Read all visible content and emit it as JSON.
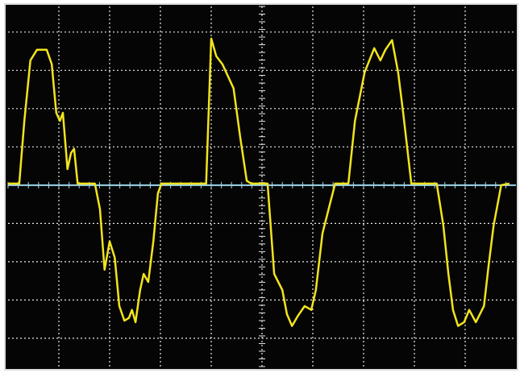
{
  "chart_data": {
    "type": "line",
    "x": [
      0,
      0.22,
      0.32,
      0.44,
      0.57,
      0.76,
      0.86,
      0.95,
      1.02,
      1.08,
      1.17,
      1.24,
      1.3,
      1.37,
      1.71,
      1.81,
      1.9,
      2.0,
      2.1,
      2.19,
      2.29,
      2.38,
      2.44,
      2.51,
      2.6,
      2.67,
      2.76,
      2.86,
      2.95,
      3.02,
      3.9,
      4.0,
      4.1,
      4.22,
      4.44,
      4.57,
      4.7,
      4.79,
      5.11,
      5.24,
      5.4,
      5.49,
      5.59,
      5.71,
      5.84,
      5.97,
      6.06,
      6.19,
      6.35,
      6.44,
      6.7,
      6.83,
      7.02,
      7.21,
      7.33,
      7.43,
      7.56,
      7.68,
      7.78,
      7.94,
      8.44,
      8.57,
      8.67,
      8.76,
      8.86,
      8.98,
      9.08,
      9.21,
      9.37,
      9.46,
      9.56,
      9.71,
      9.87
    ],
    "series": [
      {
        "color": "#f2e41c",
        "values": [
          0.04,
          0.04,
          1.68,
          3.26,
          3.54,
          3.54,
          3.16,
          1.89,
          1.68,
          1.89,
          0.42,
          0.84,
          0.95,
          0.04,
          0.04,
          -0.63,
          -2.21,
          -1.47,
          -1.89,
          -3.16,
          -3.54,
          -3.47,
          -3.26,
          -3.58,
          -2.74,
          -2.32,
          -2.53,
          -1.47,
          -0.21,
          0.04,
          0.04,
          3.83,
          3.37,
          3.16,
          2.53,
          1.26,
          0.11,
          0.04,
          0.04,
          -2.32,
          -2.74,
          -3.37,
          -3.68,
          -3.41,
          -3.16,
          -3.26,
          -2.74,
          -1.26,
          -0.42,
          0.04,
          0.04,
          1.68,
          2.95,
          3.58,
          3.26,
          3.54,
          3.79,
          2.95,
          1.89,
          0.04,
          0.04,
          -1.05,
          -2.32,
          -3.26,
          -3.68,
          -3.58,
          -3.26,
          -3.58,
          -3.16,
          -2.11,
          -1.05,
          0,
          0.04
        ]
      }
    ],
    "xlim": [
      0,
      10
    ],
    "xticks": [
      1,
      2,
      3,
      4,
      5,
      6,
      7,
      8,
      9
    ],
    "ylim": [
      -4.74,
      4.67
    ],
    "yticks": [
      -4,
      -3,
      -2,
      -1,
      0,
      1,
      2,
      3,
      4
    ],
    "grid": true
  }
}
